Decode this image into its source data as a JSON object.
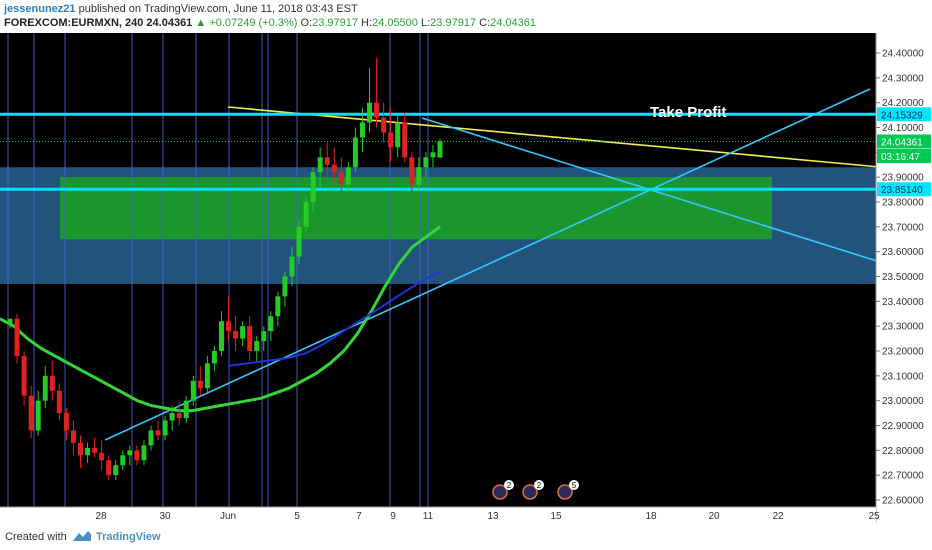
{
  "header": {
    "author": "jessenunez21",
    "published": "published on TradingView.com, June 11, 2018 03:43 EST",
    "symbol": "FOREXCOM:EURMXN, 240",
    "last": "24.04361",
    "change": "▲ +0.07249 (+0.3%)",
    "o_label": "O:",
    "o_value": "23.97917",
    "h_label": "H:",
    "h_value": "24.05500",
    "l_label": "L:",
    "l_value": "23.97917",
    "c_label": "C:",
    "c_value": "24.04361"
  },
  "footer": {
    "created": "Created with",
    "brand": "TradingView"
  },
  "chart_data": {
    "type": "candlestick",
    "title": "",
    "ylim": [
      22.55,
      24.5
    ],
    "yticks": [
      "24.40000",
      "24.30000",
      "24.20000",
      "24.10000",
      "24.00000",
      "23.90000",
      "23.80000",
      "23.70000",
      "23.60000",
      "23.50000",
      "23.40000",
      "23.30000",
      "23.20000",
      "23.10000",
      "23.00000",
      "22.90000",
      "22.80000",
      "22.70000",
      "22.60000"
    ],
    "xticks": [
      "28",
      "30",
      "Jun",
      "5",
      "7",
      "9",
      "11",
      "13",
      "15",
      "18",
      "20",
      "22",
      "25"
    ],
    "price_labels": [
      {
        "text": "24.15329",
        "value": 24.15329,
        "color": "#00e5ff"
      },
      {
        "text": "24.04361",
        "value": 24.04361,
        "color": "#00c853"
      },
      {
        "text": "03:16:47",
        "value": 23.985,
        "color": "#00c853"
      },
      {
        "text": "23.85140",
        "value": 23.8514,
        "color": "#00e5ff"
      }
    ],
    "annotation": "Take Profit",
    "horizontal_levels": [
      24.15329,
      23.8514
    ],
    "last_price": 24.04361,
    "zones": [
      {
        "name": "green-zone",
        "from": 23.65,
        "to": 23.9,
        "color": "#1aa81a"
      },
      {
        "name": "blue-zone",
        "from": 23.47,
        "to": 23.94,
        "color": "#2d6fa6"
      }
    ],
    "event_badges": [
      "2",
      "2",
      "5"
    ],
    "candles": [
      [
        23.31,
        23.33,
        23.29,
        23.33
      ],
      [
        23.33,
        23.35,
        23.15,
        23.18
      ],
      [
        23.18,
        23.2,
        22.98,
        23.02
      ],
      [
        23.02,
        23.06,
        22.85,
        22.88
      ],
      [
        22.88,
        23.04,
        22.86,
        23.0
      ],
      [
        23.0,
        23.14,
        22.97,
        23.1
      ],
      [
        23.1,
        23.16,
        23.0,
        23.04
      ],
      [
        23.04,
        23.07,
        22.92,
        22.95
      ],
      [
        22.95,
        22.97,
        22.84,
        22.88
      ],
      [
        22.88,
        22.92,
        22.78,
        22.83
      ],
      [
        22.83,
        22.86,
        22.73,
        22.78
      ],
      [
        22.78,
        22.83,
        22.75,
        22.81
      ],
      [
        22.81,
        22.85,
        22.77,
        22.79
      ],
      [
        22.79,
        22.84,
        22.72,
        22.76
      ],
      [
        22.76,
        22.78,
        22.68,
        22.7
      ],
      [
        22.7,
        22.76,
        22.68,
        22.74
      ],
      [
        22.74,
        22.8,
        22.72,
        22.78
      ],
      [
        22.78,
        22.82,
        22.74,
        22.8
      ],
      [
        22.8,
        22.82,
        22.74,
        22.76
      ],
      [
        22.76,
        22.84,
        22.74,
        22.82
      ],
      [
        22.82,
        22.9,
        22.8,
        22.88
      ],
      [
        22.88,
        22.92,
        22.84,
        22.86
      ],
      [
        22.86,
        22.94,
        22.84,
        22.92
      ],
      [
        22.92,
        22.98,
        22.88,
        22.95
      ],
      [
        22.95,
        23.0,
        22.9,
        22.93
      ],
      [
        22.93,
        23.02,
        22.91,
        23.0
      ],
      [
        23.0,
        23.1,
        22.98,
        23.08
      ],
      [
        23.08,
        23.14,
        23.02,
        23.05
      ],
      [
        23.05,
        23.18,
        23.03,
        23.15
      ],
      [
        23.15,
        23.22,
        23.12,
        23.2
      ],
      [
        23.2,
        23.36,
        23.18,
        23.32
      ],
      [
        23.32,
        23.42,
        23.24,
        23.28
      ],
      [
        23.28,
        23.34,
        23.2,
        23.25
      ],
      [
        23.25,
        23.32,
        23.22,
        23.3
      ],
      [
        23.3,
        23.34,
        23.16,
        23.2
      ],
      [
        23.2,
        23.26,
        23.16,
        23.24
      ],
      [
        23.24,
        23.3,
        23.2,
        23.28
      ],
      [
        23.28,
        23.36,
        23.24,
        23.34
      ],
      [
        23.34,
        23.44,
        23.3,
        23.42
      ],
      [
        23.42,
        23.52,
        23.38,
        23.5
      ],
      [
        23.5,
        23.62,
        23.46,
        23.58
      ],
      [
        23.58,
        23.72,
        23.55,
        23.7
      ],
      [
        23.7,
        23.82,
        23.68,
        23.8
      ],
      [
        23.8,
        23.94,
        23.76,
        23.92
      ],
      [
        23.92,
        24.02,
        23.86,
        23.98
      ],
      [
        23.98,
        24.04,
        23.9,
        23.95
      ],
      [
        23.95,
        24.02,
        23.88,
        23.92
      ],
      [
        23.92,
        23.98,
        23.84,
        23.87
      ],
      [
        23.87,
        23.96,
        23.84,
        23.94
      ],
      [
        23.94,
        24.1,
        23.92,
        24.06
      ],
      [
        24.06,
        24.18,
        24.0,
        24.12
      ],
      [
        24.12,
        24.34,
        24.08,
        24.2
      ],
      [
        24.2,
        24.38,
        24.1,
        24.14
      ],
      [
        24.14,
        24.2,
        24.04,
        24.08
      ],
      [
        24.08,
        24.18,
        23.96,
        24.02
      ],
      [
        24.02,
        24.16,
        23.98,
        24.12
      ],
      [
        24.12,
        24.16,
        23.96,
        23.98
      ],
      [
        23.98,
        24.0,
        23.84,
        23.87
      ],
      [
        23.87,
        23.98,
        23.84,
        23.94
      ],
      [
        23.94,
        24.0,
        23.9,
        23.98
      ],
      [
        23.98,
        24.03,
        23.94,
        24.0
      ],
      [
        23.979,
        24.055,
        23.979,
        24.044
      ]
    ],
    "series": [
      {
        "name": "",
        "color": "#33d639",
        "values": [
          23.33,
          23.3,
          23.25,
          23.21,
          23.18,
          23.15,
          23.12,
          23.09,
          23.06,
          23.03,
          23.0,
          22.98,
          22.97,
          22.96,
          22.96,
          22.97,
          22.98,
          22.99,
          23.0,
          23.01,
          23.03,
          23.05,
          23.08,
          23.11,
          23.15,
          23.2,
          23.27,
          23.36,
          23.46,
          23.55,
          23.62,
          23.66,
          23.7
        ]
      },
      {
        "name": "",
        "color": "#2233dd",
        "values": [
          23.14,
          23.15,
          23.16,
          23.17,
          23.19,
          23.23,
          23.28,
          23.33,
          23.38,
          23.43,
          23.48,
          23.52
        ]
      }
    ]
  }
}
